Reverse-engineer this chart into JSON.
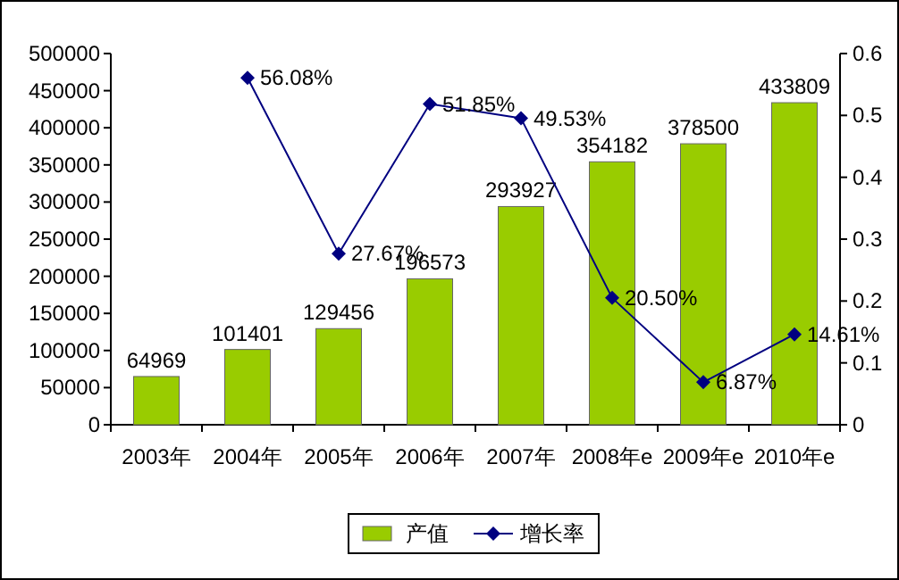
{
  "chart_data": {
    "type": "bar",
    "categories": [
      "2003年",
      "2004年",
      "2005年",
      "2006年",
      "2007年",
      "2008年e",
      "2009年e",
      "2010年e"
    ],
    "series": [
      {
        "name": "产值",
        "color": "#99cc00",
        "data_labels": true,
        "values": [
          64969,
          101401,
          129456,
          196573,
          293927,
          354182,
          378500,
          433809
        ]
      },
      {
        "name": "增长率",
        "type": "line",
        "axis": "y2",
        "color": "#000080",
        "marker": "diamond",
        "values": [
          null,
          0.5608,
          0.2767,
          0.5185,
          0.4953,
          0.205,
          0.0687,
          0.1461
        ],
        "value_labels": [
          null,
          "56.08%",
          "27.67%",
          "51.85%",
          "49.53%",
          "20.50%",
          "6.87%",
          "14.61%"
        ]
      }
    ],
    "ylim": [
      0,
      500000
    ],
    "yticks": [
      0,
      50000,
      100000,
      150000,
      200000,
      250000,
      300000,
      350000,
      400000,
      450000,
      500000
    ],
    "y2lim": [
      0,
      0.6
    ],
    "y2ticks": [
      0,
      0.1,
      0.2,
      0.3,
      0.4,
      0.5,
      0.6
    ],
    "legend": "bottom"
  }
}
